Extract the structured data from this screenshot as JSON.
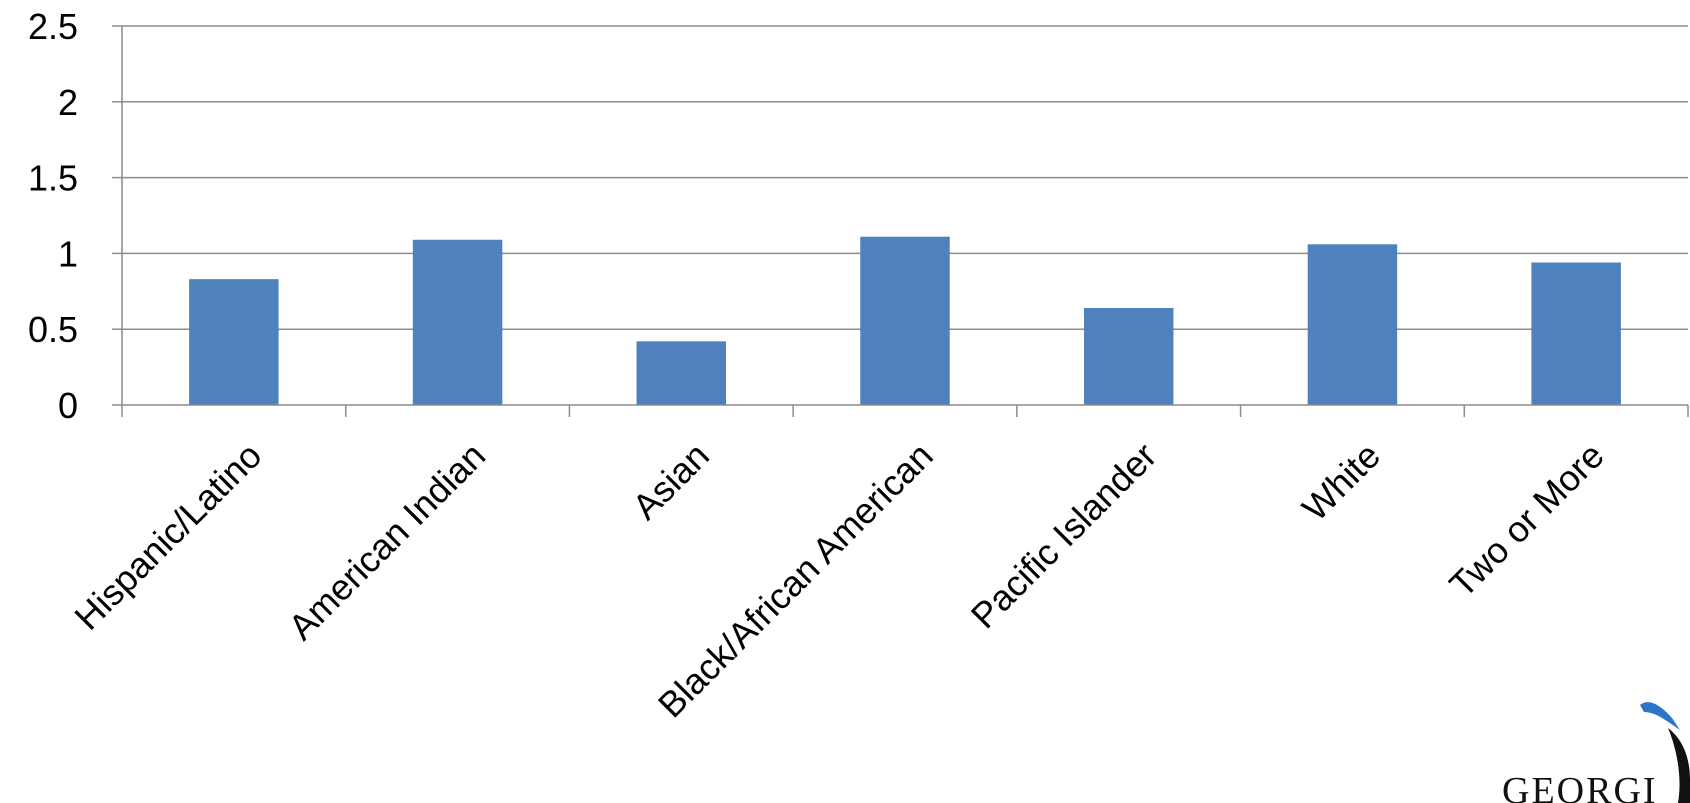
{
  "chart_data": {
    "type": "bar",
    "categories": [
      "Hispanic/Latino",
      "American Indian",
      "Asian",
      "Black/African American",
      "Pacific Islander",
      "White",
      "Two or More"
    ],
    "values": [
      0.83,
      1.09,
      0.42,
      1.11,
      0.64,
      1.06,
      0.94
    ],
    "yticks": [
      "0",
      "0.5",
      "1",
      "1.5",
      "2",
      "2.5"
    ],
    "ylim": [
      0,
      2.5
    ],
    "grid": true,
    "title": "",
    "xlabel": "",
    "ylabel": ""
  },
  "colors": {
    "bar": "#4F81BD",
    "grid": "#8C8C8C",
    "axis": "#8C8C8C",
    "logo_swoosh": "#2E75C7",
    "logo_mark": "#111111"
  },
  "logo": {
    "text": "GEORGI"
  }
}
